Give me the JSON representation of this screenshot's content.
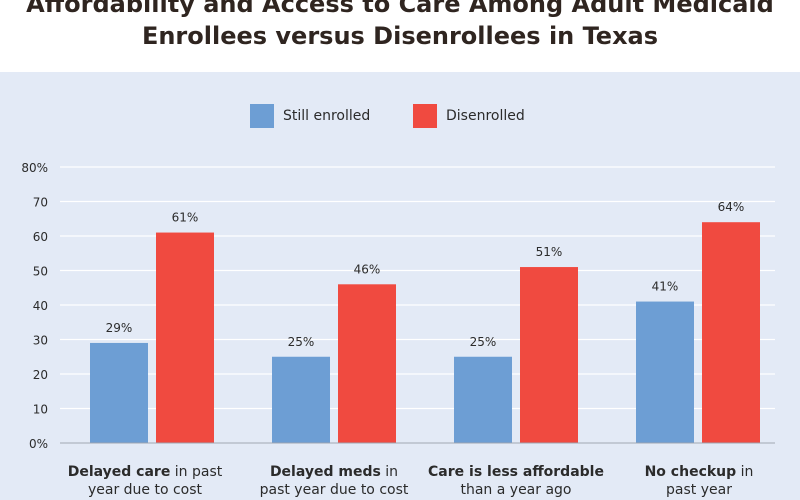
{
  "title_line1": "Affordability and Access to Care Among Adult Medicaid",
  "title_line2": "Enrollees versus Disenrollees in Texas",
  "colors": {
    "still_enrolled": "#6d9ed4",
    "disenrolled": "#f04a40",
    "background": "#e3eaf6"
  },
  "chart_data": {
    "type": "bar",
    "categories": [
      {
        "bold": "Delayed care",
        "rest_line1": " in past",
        "line2": "year due to cost"
      },
      {
        "bold": "Delayed meds",
        "rest_line1": " in",
        "line2": "past year due to cost"
      },
      {
        "bold": "Care is less affordable",
        "rest_line1": "",
        "line2": "than a year ago"
      },
      {
        "bold": "No checkup",
        "rest_line1": " in",
        "line2": "past year"
      }
    ],
    "series": [
      {
        "name": "Still enrolled",
        "values": [
          29,
          25,
          25,
          41
        ],
        "labels": [
          "29%",
          "25%",
          "25%",
          "41%"
        ]
      },
      {
        "name": "Disenrolled",
        "values": [
          61,
          46,
          51,
          64
        ],
        "labels": [
          "61%",
          "46%",
          "51%",
          "64%"
        ]
      }
    ],
    "ylim": [
      0,
      80
    ],
    "yticks": [
      "0%",
      "10",
      "20",
      "30",
      "40",
      "50",
      "60",
      "70",
      "80%"
    ],
    "grid": true,
    "legend": "top-center"
  }
}
